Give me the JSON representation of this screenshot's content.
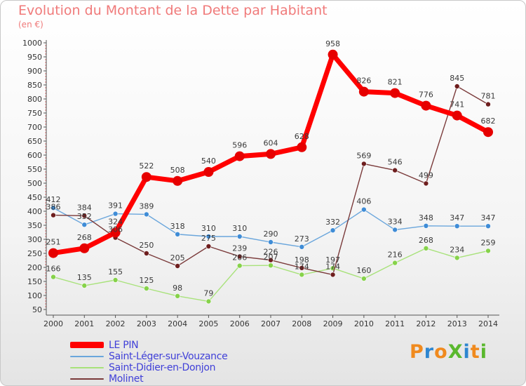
{
  "header": {
    "title": "Evolution du Montant de la Dette par Habitant",
    "subtitle": "(en €)"
  },
  "logo": {
    "text": "ProXiti",
    "letter_colors": [
      "#f08a1e",
      "#2e86d0",
      "#f08a1e",
      "#5ab82e",
      "#2e86d0",
      "#f08a1e",
      "#5ab82e"
    ]
  },
  "chart_data": {
    "type": "line",
    "title": "Evolution du Montant de la Dette par Habitant",
    "subtitle": "(en €)",
    "xlabel": "",
    "ylabel": "",
    "x": [
      "2000",
      "2001",
      "2002",
      "2003",
      "2004",
      "2005",
      "2006",
      "2007",
      "2008",
      "2009",
      "2010",
      "2011",
      "2012",
      "2013",
      "2014"
    ],
    "ylim": [
      50,
      1000
    ],
    "yticks": [
      50,
      100,
      150,
      200,
      250,
      300,
      350,
      400,
      450,
      500,
      550,
      600,
      650,
      700,
      750,
      800,
      850,
      900,
      950,
      1000
    ],
    "grid": false,
    "legend_position": "bottom-left",
    "series": [
      {
        "name": "LE PIN",
        "color": "#ff0000",
        "marker_color": "#e60000",
        "width": 7,
        "marker_size": 7,
        "values": [
          251,
          268,
          324,
          522,
          508,
          540,
          596,
          604,
          628,
          958,
          826,
          821,
          776,
          741,
          682
        ],
        "labels": [
          "251",
          "268",
          "324",
          "522",
          "508",
          "540",
          "596",
          "604",
          "628",
          "958",
          "826",
          "821",
          "776",
          "741",
          "682"
        ]
      },
      {
        "name": "Saint-Léger-sur-Vouzance",
        "color": "#6aa6dc",
        "marker_color": "#3f8cd6",
        "width": 1.4,
        "marker_size": 3.5,
        "values": [
          412,
          352,
          391,
          389,
          318,
          310,
          310,
          290,
          273,
          332,
          406,
          334,
          348,
          347,
          347
        ],
        "labels": [
          "412",
          "352",
          "391",
          "389",
          "318",
          "310",
          "310",
          "290",
          "273",
          "332",
          "406",
          "334",
          "348",
          "347",
          "347"
        ]
      },
      {
        "name": "Saint-Didier-en-Donjon",
        "color": "#a8e27a",
        "marker_color": "#86d24a",
        "width": 1.4,
        "marker_size": 3.5,
        "values": [
          166,
          135,
          155,
          125,
          98,
          79,
          206,
          207,
          174,
          197,
          160,
          216,
          268,
          234,
          259
        ],
        "labels": [
          "166",
          "135",
          "155",
          "125",
          "98",
          "79",
          "206",
          "207",
          "174",
          "197",
          "160",
          "216",
          "268",
          "234",
          "259"
        ]
      },
      {
        "name": "Molinet",
        "color": "#7a3a3a",
        "marker_color": "#6e1e1e",
        "width": 1.4,
        "marker_size": 3.5,
        "values": [
          386,
          384,
          306,
          250,
          205,
          275,
          239,
          226,
          198,
          174,
          569,
          546,
          499,
          845,
          781
        ],
        "labels": [
          "386",
          "384",
          "306",
          "250",
          "205",
          "275",
          "239",
          "226",
          "198",
          "174",
          "569",
          "546",
          "499",
          "845",
          "781"
        ]
      }
    ]
  }
}
